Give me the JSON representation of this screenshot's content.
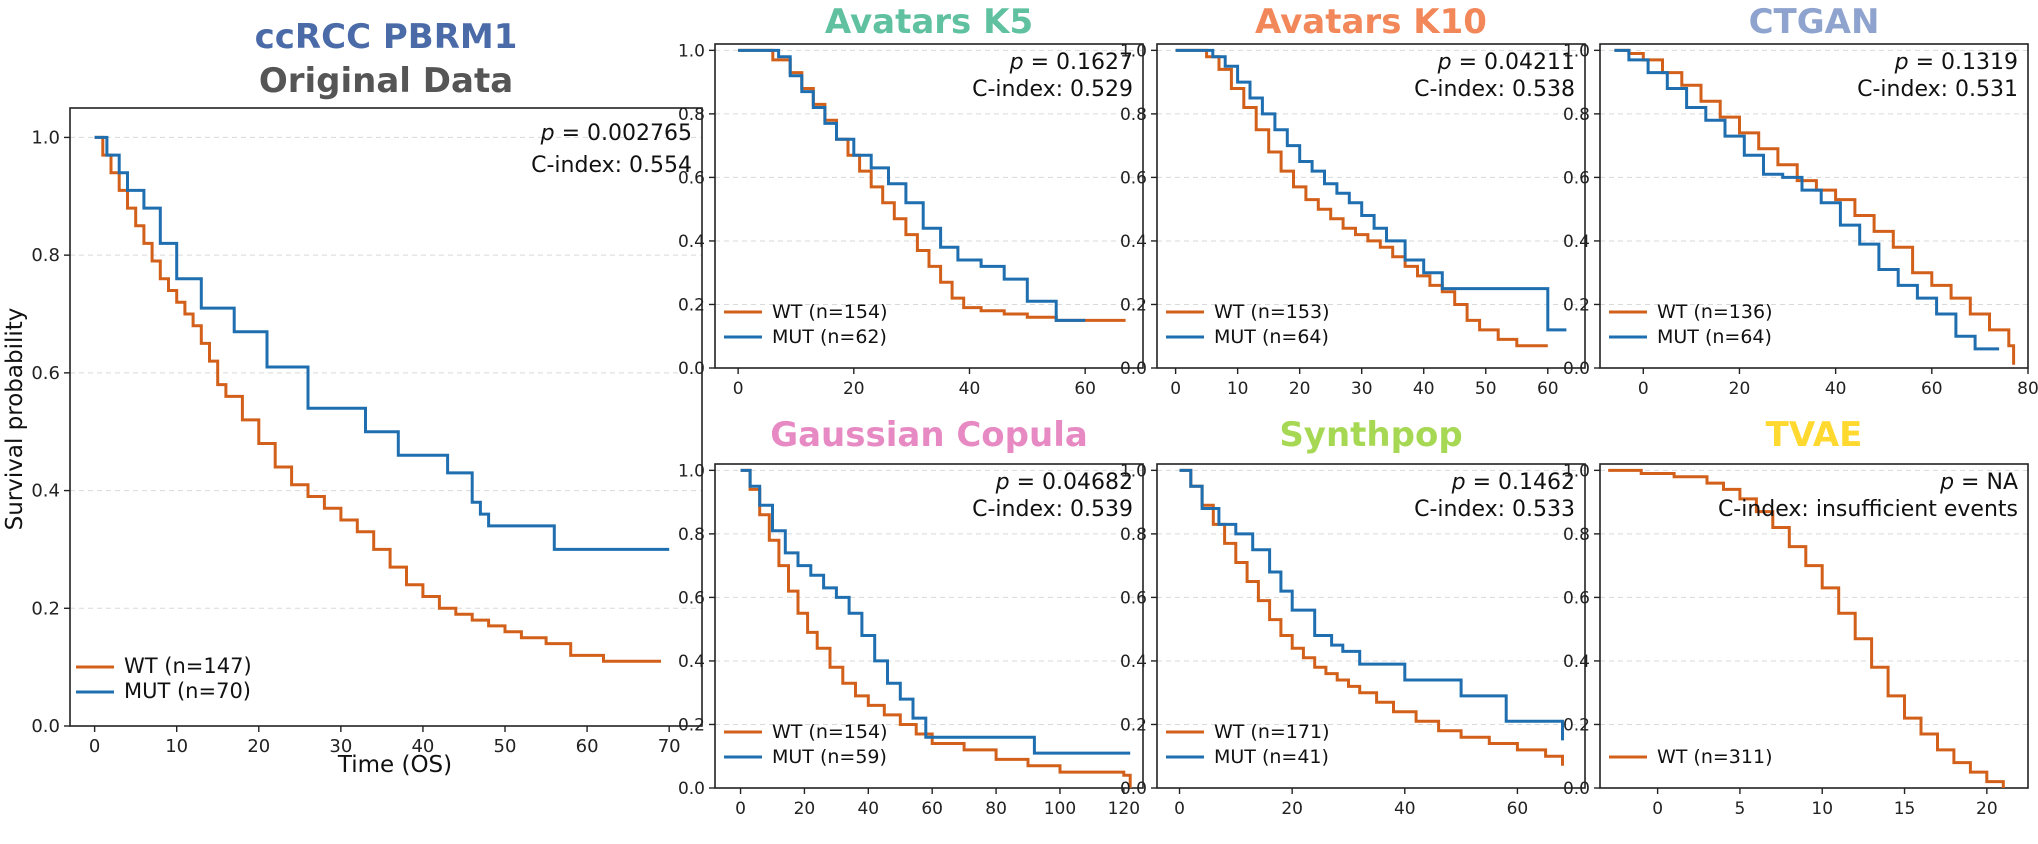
{
  "figure": {
    "ylabel": "Survival probability",
    "xlabel": "Time (OS)"
  },
  "colors": {
    "WT": "#d2601a",
    "MUT": "#1f6fb0"
  },
  "chart_data": [
    {
      "id": "original",
      "type": "line",
      "title_lines": [
        "ccRCC PBRM1",
        "Original Data"
      ],
      "title_colors": [
        "#4a6aa8",
        "#555555"
      ],
      "p_label": "p",
      "p_value": "= 0.002765",
      "c_index": "C-index: 0.554",
      "xlim": [
        -3,
        74
      ],
      "ylim": [
        0,
        1.05
      ],
      "xticks": [
        0,
        10,
        20,
        30,
        40,
        50,
        60,
        70
      ],
      "yticks": [
        0.0,
        0.2,
        0.4,
        0.6,
        0.8,
        1.0
      ],
      "series": [
        {
          "name": "WT (n=147)",
          "group": "WT",
          "x": [
            0,
            1,
            2,
            3,
            4,
            5,
            6,
            7,
            8,
            9,
            10,
            11,
            12,
            13,
            14,
            15,
            16,
            18,
            20,
            22,
            24,
            26,
            28,
            30,
            32,
            34,
            36,
            38,
            40,
            42,
            44,
            46,
            48,
            50,
            52,
            55,
            58,
            62,
            66,
            69
          ],
          "y": [
            1.0,
            0.97,
            0.94,
            0.91,
            0.88,
            0.85,
            0.82,
            0.79,
            0.76,
            0.74,
            0.72,
            0.7,
            0.68,
            0.65,
            0.62,
            0.58,
            0.56,
            0.52,
            0.48,
            0.44,
            0.41,
            0.39,
            0.37,
            0.35,
            0.33,
            0.3,
            0.27,
            0.24,
            0.22,
            0.2,
            0.19,
            0.18,
            0.17,
            0.16,
            0.15,
            0.14,
            0.12,
            0.11,
            0.11,
            0.11
          ]
        },
        {
          "name": "MUT (n=70)",
          "group": "MUT",
          "x": [
            0,
            1.5,
            3,
            4,
            6,
            8,
            10,
            13,
            17,
            21,
            26,
            27,
            33,
            37,
            43,
            46,
            47,
            48,
            50,
            56,
            70
          ],
          "y": [
            1.0,
            0.97,
            0.94,
            0.91,
            0.88,
            0.82,
            0.76,
            0.71,
            0.67,
            0.61,
            0.54,
            0.54,
            0.5,
            0.46,
            0.43,
            0.38,
            0.36,
            0.34,
            0.34,
            0.3,
            0.3
          ]
        }
      ]
    },
    {
      "id": "k5",
      "type": "line",
      "title_lines": [
        "Avatars K5"
      ],
      "title_colors": [
        "#5fc1a0"
      ],
      "p_label": "p",
      "p_value": "= 0.1627",
      "c_index": "C-index: 0.529",
      "xlim": [
        -4,
        70
      ],
      "ylim": [
        0,
        1.02
      ],
      "xticks": [
        0,
        20,
        40,
        60
      ],
      "yticks": [
        0.0,
        0.2,
        0.4,
        0.6,
        0.8,
        1.0
      ],
      "series": [
        {
          "name": "WT (n=154)",
          "group": "WT",
          "x": [
            0,
            6,
            9,
            11,
            13,
            15,
            17,
            19,
            21,
            23,
            25,
            27,
            29,
            31,
            33,
            35,
            37,
            39,
            42,
            46,
            50,
            55,
            60,
            67
          ],
          "y": [
            1.0,
            0.97,
            0.93,
            0.88,
            0.83,
            0.78,
            0.72,
            0.67,
            0.62,
            0.57,
            0.52,
            0.47,
            0.42,
            0.37,
            0.32,
            0.27,
            0.22,
            0.19,
            0.18,
            0.17,
            0.16,
            0.15,
            0.15,
            0.15
          ]
        },
        {
          "name": "MUT (n=62)",
          "group": "MUT",
          "x": [
            0,
            7,
            9,
            11,
            13,
            15,
            17,
            20,
            23,
            26,
            29,
            32,
            35,
            38,
            42,
            46,
            50,
            55,
            60
          ],
          "y": [
            1.0,
            0.98,
            0.92,
            0.87,
            0.82,
            0.77,
            0.72,
            0.67,
            0.63,
            0.58,
            0.52,
            0.44,
            0.38,
            0.34,
            0.32,
            0.28,
            0.21,
            0.15,
            0.15
          ]
        }
      ]
    },
    {
      "id": "k10",
      "type": "line",
      "title_lines": [
        "Avatars K10"
      ],
      "title_colors": [
        "#f2875a"
      ],
      "p_label": "p",
      "p_value": "= 0.04211",
      "c_index": "C-index: 0.538",
      "xlim": [
        -3,
        66
      ],
      "ylim": [
        0,
        1.02
      ],
      "xticks": [
        0,
        10,
        20,
        30,
        40,
        50,
        60
      ],
      "yticks": [
        0.0,
        0.2,
        0.4,
        0.6,
        0.8,
        1.0
      ],
      "series": [
        {
          "name": "WT (n=153)",
          "group": "WT",
          "x": [
            0,
            5,
            7,
            9,
            11,
            13,
            15,
            17,
            19,
            21,
            23,
            25,
            27,
            29,
            31,
            33,
            35,
            37,
            39,
            41,
            43,
            45,
            47,
            49,
            52,
            55,
            60
          ],
          "y": [
            1.0,
            0.98,
            0.94,
            0.88,
            0.82,
            0.75,
            0.68,
            0.62,
            0.57,
            0.53,
            0.5,
            0.47,
            0.44,
            0.42,
            0.4,
            0.38,
            0.35,
            0.32,
            0.29,
            0.26,
            0.24,
            0.2,
            0.15,
            0.12,
            0.09,
            0.07,
            0.07
          ]
        },
        {
          "name": "MUT (n=64)",
          "group": "MUT",
          "x": [
            0,
            6,
            8,
            10,
            12,
            14,
            16,
            18,
            20,
            22,
            24,
            26,
            28,
            30,
            32,
            34,
            37,
            40,
            43,
            60,
            63
          ],
          "y": [
            1.0,
            0.98,
            0.95,
            0.9,
            0.85,
            0.8,
            0.75,
            0.7,
            0.65,
            0.62,
            0.58,
            0.55,
            0.52,
            0.48,
            0.44,
            0.4,
            0.34,
            0.3,
            0.25,
            0.12,
            0.12
          ]
        }
      ]
    },
    {
      "id": "ctgan",
      "type": "line",
      "title_lines": [
        "CTGAN"
      ],
      "title_colors": [
        "#8fa3cf"
      ],
      "p_label": "p",
      "p_value": "= 0.1319",
      "c_index": "C-index: 0.531",
      "xlim": [
        -9,
        80
      ],
      "ylim": [
        0,
        1.02
      ],
      "xticks": [
        0,
        20,
        40,
        60,
        80
      ],
      "yticks": [
        0.0,
        0.2,
        0.4,
        0.6,
        0.8,
        1.0
      ],
      "series": [
        {
          "name": "WT (n=136)",
          "group": "WT",
          "x": [
            -6,
            -3,
            0,
            4,
            8,
            12,
            16,
            20,
            24,
            28,
            32,
            36,
            40,
            44,
            48,
            52,
            56,
            60,
            64,
            68,
            72,
            76,
            77
          ],
          "y": [
            1.0,
            0.99,
            0.97,
            0.93,
            0.89,
            0.84,
            0.79,
            0.74,
            0.69,
            0.64,
            0.59,
            0.56,
            0.53,
            0.48,
            0.43,
            0.38,
            0.3,
            0.26,
            0.22,
            0.17,
            0.12,
            0.07,
            0.01
          ]
        },
        {
          "name": "MUT (n=64)",
          "group": "MUT",
          "x": [
            -6,
            -3,
            1,
            5,
            9,
            13,
            17,
            21,
            25,
            29,
            33,
            37,
            41,
            45,
            49,
            53,
            57,
            61,
            65,
            69,
            74
          ],
          "y": [
            1.0,
            0.97,
            0.93,
            0.88,
            0.82,
            0.78,
            0.73,
            0.67,
            0.61,
            0.6,
            0.56,
            0.52,
            0.45,
            0.39,
            0.31,
            0.26,
            0.22,
            0.17,
            0.1,
            0.06,
            0.06
          ]
        }
      ]
    },
    {
      "id": "gauss",
      "type": "line",
      "title_lines": [
        "Gaussian Copula"
      ],
      "title_colors": [
        "#e78ac3"
      ],
      "p_label": "p",
      "p_value": "= 0.04682",
      "c_index": "C-index: 0.539",
      "xlim": [
        -8,
        126
      ],
      "ylim": [
        0,
        1.02
      ],
      "xticks": [
        0,
        20,
        40,
        60,
        80,
        100,
        120
      ],
      "yticks": [
        0.0,
        0.2,
        0.4,
        0.6,
        0.8,
        1.0
      ],
      "series": [
        {
          "name": "WT (n=154)",
          "group": "WT",
          "x": [
            0,
            3,
            6,
            9,
            12,
            15,
            18,
            21,
            24,
            28,
            32,
            36,
            40,
            45,
            50,
            55,
            60,
            70,
            80,
            90,
            100,
            110,
            120,
            122
          ],
          "y": [
            1.0,
            0.94,
            0.86,
            0.78,
            0.7,
            0.62,
            0.55,
            0.49,
            0.44,
            0.38,
            0.33,
            0.29,
            0.26,
            0.23,
            0.2,
            0.17,
            0.14,
            0.12,
            0.09,
            0.07,
            0.05,
            0.05,
            0.04,
            0.0
          ]
        },
        {
          "name": "MUT (n=59)",
          "group": "MUT",
          "x": [
            0,
            3,
            6,
            10,
            14,
            18,
            22,
            26,
            30,
            34,
            38,
            42,
            46,
            50,
            54,
            58,
            62,
            75,
            92,
            122
          ],
          "y": [
            1.0,
            0.95,
            0.89,
            0.81,
            0.74,
            0.7,
            0.67,
            0.63,
            0.6,
            0.55,
            0.48,
            0.4,
            0.33,
            0.28,
            0.22,
            0.16,
            0.16,
            0.16,
            0.11,
            0.11
          ]
        }
      ]
    },
    {
      "id": "synth",
      "type": "line",
      "title_lines": [
        "Synthpop"
      ],
      "title_colors": [
        "#a6d854"
      ],
      "p_label": "p",
      "p_value": "= 0.1462",
      "c_index": "C-index: 0.533",
      "xlim": [
        -4,
        72
      ],
      "ylim": [
        0,
        1.02
      ],
      "xticks": [
        0,
        20,
        40,
        60
      ],
      "yticks": [
        0.0,
        0.2,
        0.4,
        0.6,
        0.8,
        1.0
      ],
      "series": [
        {
          "name": "WT (n=171)",
          "group": "WT",
          "x": [
            0,
            2,
            4,
            6,
            8,
            10,
            12,
            14,
            16,
            18,
            20,
            22,
            24,
            26,
            28,
            30,
            32,
            35,
            38,
            42,
            46,
            50,
            55,
            60,
            65,
            68
          ],
          "y": [
            1.0,
            0.95,
            0.89,
            0.83,
            0.77,
            0.71,
            0.65,
            0.59,
            0.53,
            0.48,
            0.44,
            0.41,
            0.38,
            0.36,
            0.34,
            0.32,
            0.3,
            0.27,
            0.24,
            0.21,
            0.18,
            0.16,
            0.14,
            0.12,
            0.1,
            0.07
          ]
        },
        {
          "name": "MUT (n=41)",
          "group": "MUT",
          "x": [
            0,
            2,
            4,
            7,
            10,
            13,
            16,
            18,
            20,
            24,
            27,
            29,
            32,
            40,
            50,
            58,
            68
          ],
          "y": [
            1.0,
            0.95,
            0.88,
            0.83,
            0.8,
            0.75,
            0.68,
            0.62,
            0.56,
            0.48,
            0.45,
            0.43,
            0.39,
            0.34,
            0.29,
            0.21,
            0.15
          ]
        }
      ]
    },
    {
      "id": "tvae",
      "type": "line",
      "title_lines": [
        "TVAE"
      ],
      "title_colors": [
        "#ffd92f"
      ],
      "p_label": "p",
      "p_value": "= NA",
      "c_index": "C-index: insufficient events",
      "xlim": [
        -3.5,
        22.5
      ],
      "ylim": [
        0,
        1.02
      ],
      "xticks": [
        0,
        5,
        10,
        15,
        20
      ],
      "yticks": [
        0.0,
        0.2,
        0.4,
        0.6,
        0.8,
        1.0
      ],
      "series": [
        {
          "name": "WT (n=311)",
          "group": "WT",
          "x": [
            -3,
            -1,
            1,
            3,
            4,
            5,
            6,
            7,
            8,
            9,
            10,
            11,
            12,
            13,
            14,
            15,
            16,
            17,
            18,
            19,
            20,
            21
          ],
          "y": [
            1.0,
            0.99,
            0.98,
            0.96,
            0.94,
            0.91,
            0.87,
            0.82,
            0.76,
            0.7,
            0.63,
            0.55,
            0.47,
            0.38,
            0.29,
            0.22,
            0.17,
            0.12,
            0.08,
            0.05,
            0.02,
            0.0
          ]
        }
      ]
    }
  ]
}
